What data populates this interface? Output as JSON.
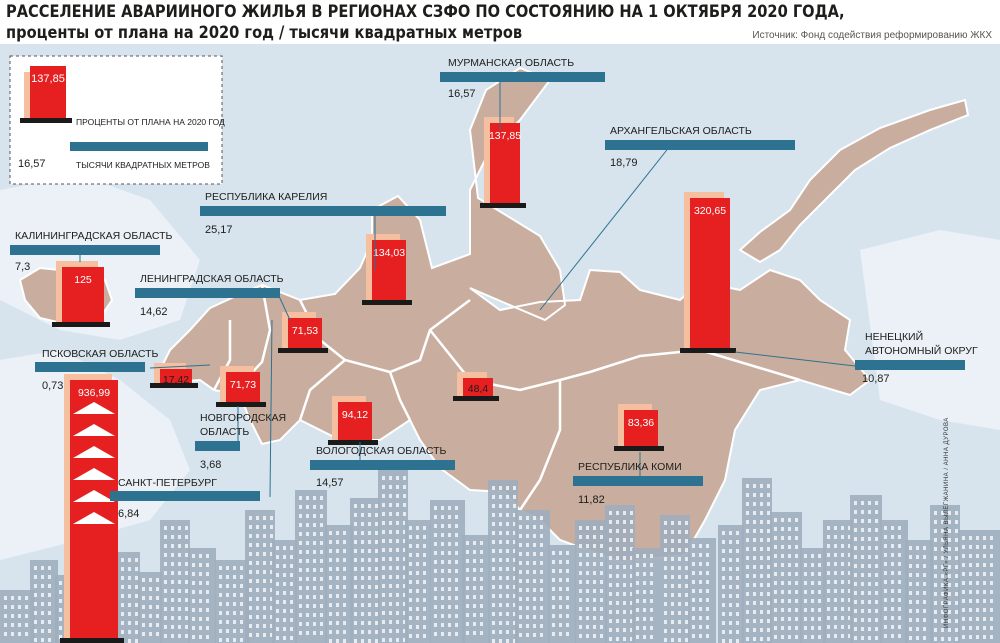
{
  "title": {
    "line1": "РАССЕЛЕНИЕ АВАРИИНОГО ЖИЛЬЯ В РЕГИОНАХ СЗФО ПО СОСТОЯНИЮ НА 1 ОКТЯБРЯ 2020 ГОДА,",
    "line2": "проценты от плана на 2020 год / тысячи квадратных метров"
  },
  "source": "Источник: Фонд содействия реформированию ЖКХ",
  "credit": "ИНФОГРАФИКА «РГ» / УЛЬЯНА ВЫЛЕГЖАНИНА / АННА ДУРОВА",
  "legend": {
    "bar_value": "137,85",
    "bar_label": "ПРОЦЕНТЫ ОТ ПЛАНА НА 2020 ГОД",
    "line_value": "16,57",
    "line_label": "ТЫСЯЧИ КВАДРАТНЫХ МЕТРОВ"
  },
  "colors": {
    "map_land": "#c9ae9f",
    "sea": "#d7e4ee",
    "region_border": "#ffffff",
    "bar_red": "#e62020",
    "bar_pink": "#f5bfa0",
    "bar_base": "#1a1a1a",
    "label_bar": "#2d7290",
    "buildings": "#9faebd"
  },
  "chart_data": {
    "type": "bar",
    "title": "РАССЕЛЕНИЕ АВАРИИНОГО ЖИЛЬЯ В РЕГИОНАХ СЗФО ПО СОСТОЯНИЮ НА 1 ОКТЯБРЯ 2020 ГОДА, проценты от плана на 2020 год / тысячи квадратных метров",
    "series": [
      {
        "name": "ПРОЦЕНТЫ ОТ ПЛАНА НА 2020 ГОД"
      },
      {
        "name": "ТЫСЯЧИ КВАДРАТНЫХ МЕТРОВ"
      }
    ],
    "regions": [
      {
        "name": "МУРМАНСКАЯ ОБЛАСТЬ",
        "percent": 137.85,
        "percent_label": "137,85",
        "area": 16.57,
        "area_label": "16,57"
      },
      {
        "name": "АРХАНГЕЛЬСКАЯ ОБЛАСТЬ",
        "percent": 48.4,
        "percent_label": "48,4",
        "area": 18.79,
        "area_label": "18,79"
      },
      {
        "name": "РЕСПУБЛИКА КАРЕЛИЯ",
        "percent": 134.03,
        "percent_label": "134,03",
        "area": 25.17,
        "area_label": "25,17"
      },
      {
        "name": "КАЛИНИНГРАДСКАЯ ОБЛАСТЬ",
        "percent": 125,
        "percent_label": "125",
        "area": 7.3,
        "area_label": "7,3"
      },
      {
        "name": "ЛЕНИНГРАДСКАЯ ОБЛАСТЬ",
        "percent": 71.53,
        "percent_label": "71,53",
        "area": 14.62,
        "area_label": "14,62"
      },
      {
        "name": "ПСКОВСКАЯ ОБЛАСТЬ",
        "percent": 17.42,
        "percent_label": "17,42",
        "area": 0.73,
        "area_label": "0,73"
      },
      {
        "name": "НОВГОРОДСКАЯ ОБЛАСТЬ",
        "percent": 71.73,
        "percent_label": "71,73",
        "area": 3.68,
        "area_label": "3,68"
      },
      {
        "name": "САНКТ-ПЕТЕРБУРГ",
        "percent": 936.99,
        "percent_label": "936,99",
        "area": 6.84,
        "area_label": "6,84"
      },
      {
        "name": "ВОЛОГОДСКАЯ ОБЛАСТЬ",
        "percent": 94.12,
        "percent_label": "94,12",
        "area": 14.57,
        "area_label": "14,57"
      },
      {
        "name": "РЕСПУБЛИКА КОМИ",
        "percent": 83.36,
        "percent_label": "83,36",
        "area": 11.82,
        "area_label": "11,82"
      },
      {
        "name": "НЕНЕЦКИЙ АВТОНОМНЫЙ ОКРУГ",
        "percent": 320.65,
        "percent_label": "320,65",
        "area": 10.87,
        "area_label": "10,87"
      }
    ]
  }
}
